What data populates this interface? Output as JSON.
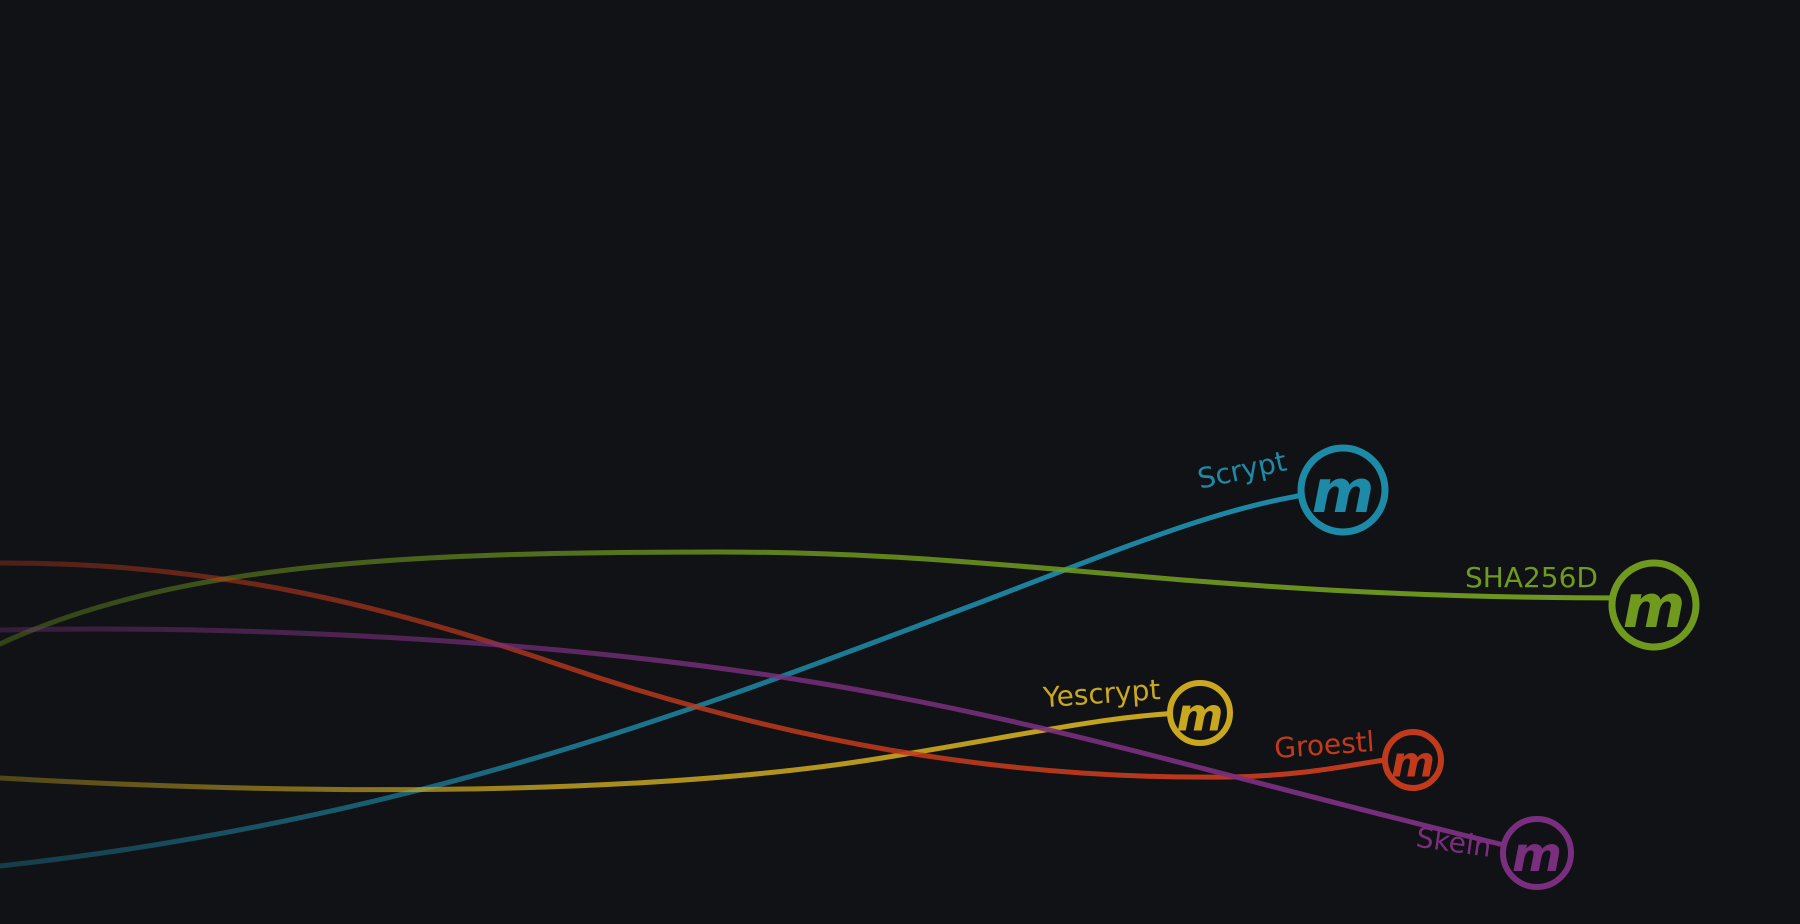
{
  "algorithms": [
    {
      "label": "Scrypt",
      "color": "#1d8ba8",
      "icon": "myriad-coin-icon"
    },
    {
      "label": "SHA256D",
      "color": "#6f9a1e",
      "icon": "myriad-coin-icon"
    },
    {
      "label": "Yescrypt",
      "color": "#c9a71f",
      "icon": "myriad-coin-icon"
    },
    {
      "label": "Groestl",
      "color": "#c23a1c",
      "icon": "myriad-coin-icon"
    },
    {
      "label": "Skein",
      "color": "#7a2f7e",
      "icon": "myriad-coin-icon"
    }
  ],
  "coin_glyph": "m"
}
